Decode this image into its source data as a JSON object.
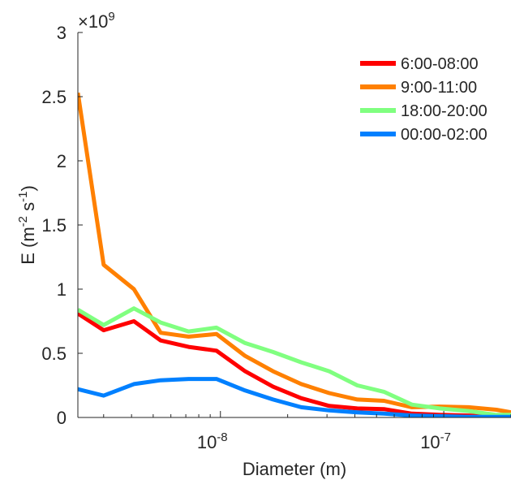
{
  "chart_data": {
    "type": "line",
    "title": "",
    "xlabel": "Diameter (m)",
    "ylabel": "E (m^-2 s^-1)",
    "ylabel_parts": {
      "main": "E (m",
      "exp1": "-2",
      "mid": " s",
      "exp2": "-1",
      "end": ")"
    },
    "xscale": "log",
    "xlim": [
      2.3e-09,
      2e-07
    ],
    "ylim": [
      0,
      3000000000.0
    ],
    "y_multiplier": "×10",
    "y_multiplier_exp": "9",
    "y_ticks": [
      0,
      500000000.0,
      1000000000.0,
      1500000000.0,
      2000000000.0,
      2500000000.0,
      3000000000.0
    ],
    "y_tick_labels": [
      "0",
      "0.5",
      "1",
      "1.5",
      "2",
      "2.5",
      "3"
    ],
    "x_ticks": [
      1e-08,
      1e-07
    ],
    "x_tick_labels": [
      {
        "base": "10",
        "exp": "-8"
      },
      {
        "base": "10",
        "exp": "-7"
      }
    ],
    "grid": false,
    "legend_position": "top-right",
    "x": [
      2.3e-09,
      3e-09,
      4.1e-09,
      5.4e-09,
      7.2e-09,
      9.6e-09,
      1.29e-08,
      1.72e-08,
      2.3e-08,
      3.07e-08,
      4.1e-08,
      5.4e-08,
      7.2e-08,
      9.6e-08,
      1.29e-07,
      1.72e-07,
      2e-07
    ],
    "series": [
      {
        "name": "6:00-08:00",
        "color": "#ff0000",
        "values": [
          810000000.0,
          680000000.0,
          750000000.0,
          600000000.0,
          550000000.0,
          520000000.0,
          360000000.0,
          240000000.0,
          150000000.0,
          90000000.0,
          70000000.0,
          65000000.0,
          30000000.0,
          20000000.0,
          15000000.0,
          10000000.0,
          10000000.0
        ]
      },
      {
        "name": "9:00-11:00",
        "color": "#ff8000",
        "values": [
          2530000000.0,
          1190000000.0,
          1000000000.0,
          660000000.0,
          630000000.0,
          650000000.0,
          480000000.0,
          360000000.0,
          260000000.0,
          190000000.0,
          140000000.0,
          130000000.0,
          80000000.0,
          85000000.0,
          80000000.0,
          60000000.0,
          40000000.0
        ]
      },
      {
        "name": "18:00-20:00",
        "color": "#80ff80",
        "values": [
          840000000.0,
          720000000.0,
          850000000.0,
          740000000.0,
          670000000.0,
          700000000.0,
          580000000.0,
          510000000.0,
          430000000.0,
          360000000.0,
          250000000.0,
          200000000.0,
          100000000.0,
          70000000.0,
          50000000.0,
          20000000.0,
          20000000.0
        ]
      },
      {
        "name": "00:00-02:00",
        "color": "#0080ff",
        "values": [
          220000000.0,
          170000000.0,
          260000000.0,
          290000000.0,
          300000000.0,
          300000000.0,
          210000000.0,
          140000000.0,
          80000000.0,
          55000000.0,
          40000000.0,
          30000000.0,
          15000000.0,
          10000000.0,
          5000000.0,
          5000000.0,
          5000000.0
        ]
      }
    ]
  }
}
